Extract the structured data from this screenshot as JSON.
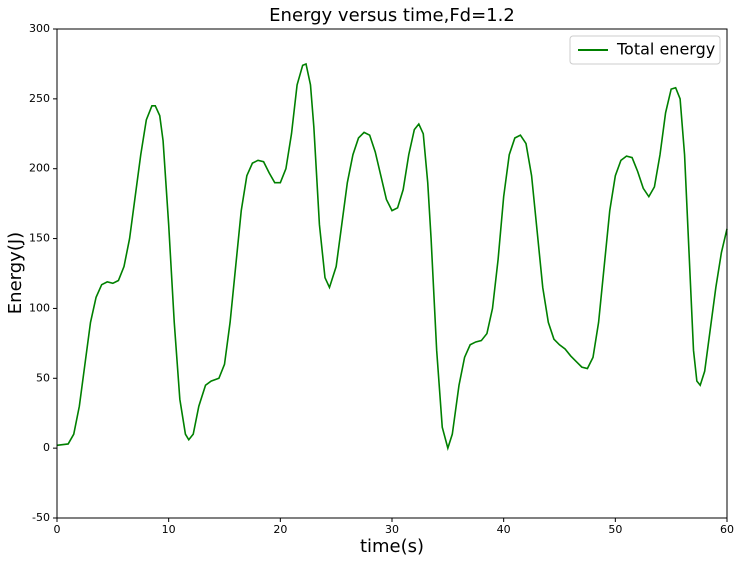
{
  "chart_data": {
    "type": "line",
    "title": "Energy versus time,Fd=1.2",
    "xlabel": "time(s)",
    "ylabel": "Energy(J)",
    "x": [
      0,
      1,
      1.5,
      2,
      2.5,
      3,
      3.5,
      4,
      4.5,
      5,
      5.5,
      6,
      6.5,
      7,
      7.5,
      8,
      8.5,
      8.8,
      9.2,
      9.5,
      10,
      10.5,
      11,
      11.5,
      11.8,
      12.2,
      12.7,
      13.3,
      13.8,
      14.5,
      15,
      15.5,
      16,
      16.5,
      17,
      17.5,
      18,
      18.5,
      19,
      19.5,
      20,
      20.5,
      21,
      21.5,
      22,
      22.3,
      22.7,
      23,
      23.5,
      24,
      24.4,
      25,
      25.5,
      26,
      26.5,
      27,
      27.5,
      28,
      28.5,
      29,
      29.5,
      30,
      30.5,
      31,
      31.5,
      32,
      32.4,
      32.8,
      33.2,
      33.5,
      34,
      34.5,
      35,
      35.4,
      36,
      36.5,
      37,
      37.5,
      38,
      38.5,
      39,
      39.5,
      40,
      40.5,
      41,
      41.5,
      42,
      42.5,
      43,
      43.5,
      44,
      44.5,
      45,
      45.5,
      46,
      46.5,
      47,
      47.5,
      48,
      48.5,
      49,
      49.5,
      50,
      50.5,
      51,
      51.5,
      52,
      52.5,
      53,
      53.5,
      54,
      54.5,
      55,
      55.4,
      55.8,
      56.2,
      56.6,
      57,
      57.3,
      57.6,
      58,
      58.5,
      59,
      59.5,
      60
    ],
    "series": [
      {
        "name": "Total energy",
        "color": "#008000",
        "values": [
          2,
          3,
          10,
          30,
          60,
          90,
          108,
          117,
          119,
          118,
          120,
          130,
          150,
          180,
          210,
          235,
          245,
          245,
          238,
          220,
          160,
          90,
          35,
          10,
          6,
          10,
          30,
          45,
          48,
          50,
          60,
          90,
          130,
          170,
          195,
          204,
          206,
          205,
          197,
          190,
          190,
          200,
          225,
          260,
          274,
          275,
          260,
          230,
          160,
          122,
          115,
          130,
          160,
          190,
          210,
          222,
          226,
          224,
          212,
          195,
          178,
          170,
          172,
          185,
          210,
          228,
          232,
          225,
          190,
          150,
          70,
          15,
          0,
          10,
          45,
          65,
          74,
          76,
          77,
          82,
          100,
          135,
          180,
          210,
          222,
          224,
          218,
          195,
          155,
          115,
          90,
          78,
          74,
          71,
          66,
          62,
          58,
          57,
          65,
          90,
          130,
          170,
          195,
          206,
          209,
          208,
          198,
          186,
          180,
          187,
          210,
          240,
          257,
          258,
          250,
          210,
          140,
          70,
          48,
          45,
          55,
          85,
          115,
          140,
          157
        ]
      }
    ],
    "xlim": [
      0,
      60
    ],
    "xticks": [
      0,
      10,
      20,
      30,
      40,
      50,
      60
    ],
    "ylim": [
      -50,
      300
    ],
    "yticks": [
      -50,
      0,
      50,
      100,
      150,
      200,
      250,
      300
    ],
    "legend": "upper right"
  }
}
